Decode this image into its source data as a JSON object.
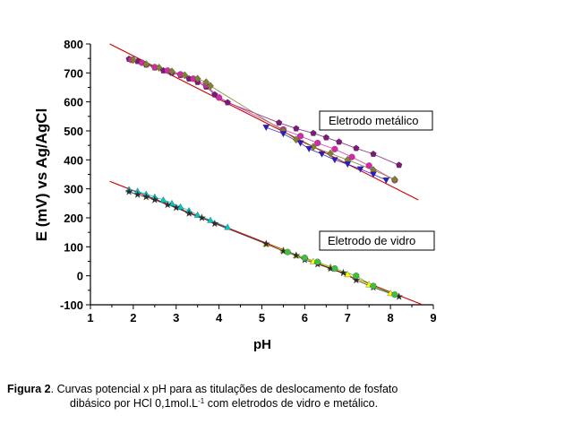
{
  "chart_data": {
    "type": "scatter",
    "xlabel": "pH",
    "ylabel": "E (mV) vs Ag/AgCl",
    "xlim": [
      1,
      9
    ],
    "ylim": [
      -100,
      800
    ],
    "xticks": [
      "1",
      "2",
      "3",
      "4",
      "5",
      "6",
      "7",
      "8",
      "9"
    ],
    "yticks": [
      "-100",
      "0",
      "100",
      "200",
      "300",
      "400",
      "500",
      "600",
      "700",
      "800"
    ],
    "annotations": [
      "Eletrodo metálico",
      "Eletrodo de vidro"
    ],
    "fit_lines": [
      {
        "color": "#cc0000",
        "x": [
          1.45,
          8.65
        ],
        "y": [
          800,
          262
        ]
      },
      {
        "color": "#cc0000",
        "x": [
          1.45,
          8.75
        ],
        "y": [
          326,
          -100
        ]
      }
    ],
    "series": [
      {
        "color": "#7b1a7b",
        "marker": "pentagon",
        "x": [
          1.9,
          2.1,
          2.3,
          2.5,
          2.7,
          2.9,
          3.1,
          3.3,
          3.5,
          3.7,
          3.9,
          4.2,
          5.4,
          5.8,
          6.2,
          6.5,
          6.8,
          7.2,
          7.6,
          8.2
        ],
        "y": [
          748,
          740,
          728,
          718,
          708,
          700,
          692,
          680,
          668,
          652,
          625,
          598,
          528,
          508,
          492,
          477,
          462,
          440,
          420,
          382
        ]
      },
      {
        "color": "#d42aa8",
        "marker": "circle",
        "x": [
          1.95,
          2.2,
          2.5,
          2.8,
          3.1,
          3.4,
          3.7,
          4.0,
          5.5,
          5.9,
          6.3,
          6.7,
          7.1,
          7.5,
          8.1
        ],
        "y": [
          745,
          735,
          720,
          708,
          695,
          680,
          658,
          615,
          505,
          482,
          458,
          437,
          410,
          380,
          330
        ]
      },
      {
        "color": "#808030",
        "marker": "diamond",
        "x": [
          2.0,
          2.3,
          2.6,
          2.9,
          3.2,
          3.5,
          3.7,
          3.8,
          5.5,
          5.8,
          6.2,
          6.6,
          7.0,
          7.6,
          8.1
        ],
        "y": [
          745,
          730,
          718,
          705,
          692,
          680,
          668,
          655,
          500,
          470,
          445,
          422,
          400,
          365,
          332
        ]
      },
      {
        "color": "#2a1acc",
        "marker": "triangle-down",
        "x": [
          5.1,
          5.5,
          5.9,
          6.1,
          6.4,
          6.7,
          7.0,
          7.3,
          7.6,
          7.9
        ],
        "y": [
          512,
          490,
          458,
          438,
          420,
          400,
          385,
          368,
          350,
          330
        ]
      },
      {
        "color": "#00c8c8",
        "marker": "triangle-up",
        "x": [
          1.9,
          2.1,
          2.3,
          2.5,
          2.7,
          2.9,
          3.1,
          3.3,
          3.5,
          3.8,
          4.2
        ],
        "y": [
          298,
          292,
          282,
          272,
          262,
          250,
          238,
          225,
          210,
          192,
          168
        ]
      },
      {
        "color": "#ffff00",
        "marker": "triangle-up",
        "x": [
          5.1,
          5.5,
          5.8,
          6.2,
          6.6,
          7.0,
          7.5,
          8.0
        ],
        "y": [
          110,
          88,
          70,
          50,
          30,
          5,
          -30,
          -60
        ]
      },
      {
        "color": "#2b2b2b",
        "marker": "star",
        "x": [
          1.9,
          2.1,
          2.3,
          2.5,
          2.8,
          3.0,
          3.3,
          3.6,
          3.9,
          5.1,
          5.5,
          5.8,
          6.0,
          6.3,
          6.6,
          6.9,
          7.2,
          7.6,
          8.2
        ],
        "y": [
          290,
          280,
          272,
          262,
          245,
          235,
          215,
          200,
          180,
          110,
          85,
          70,
          55,
          40,
          25,
          10,
          -15,
          -40,
          -72
        ]
      },
      {
        "color": "#40c040",
        "marker": "circle",
        "x": [
          5.6,
          6.0,
          6.3,
          6.7,
          7.2,
          7.6,
          8.1
        ],
        "y": [
          82,
          62,
          48,
          25,
          0,
          -35,
          -65
        ]
      }
    ]
  },
  "caption": {
    "label": "Figura 2",
    "line1": ". Curvas potencial x pH para as titulações de deslocamento de fosfato",
    "line2_start": "dibásico por HCl 0,1mol.L",
    "line2_sup": "-1",
    "line2_end": " com eletrodos de vidro e metálico."
  }
}
